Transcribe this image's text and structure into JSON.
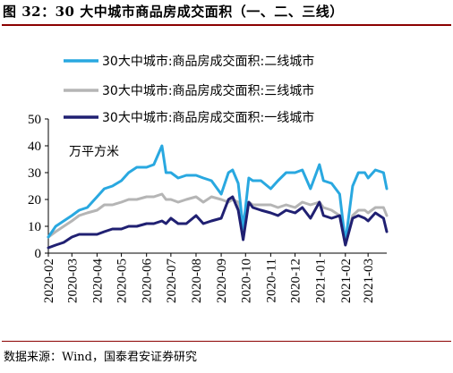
{
  "title": "图 32：30 大中城市商品房成交面积（一、二、三线）",
  "source": "数据来源：Wind，国泰君安证券研究",
  "chart_data": {
    "type": "line",
    "unit_label": "万平方米",
    "ylim": [
      0,
      50
    ],
    "yticks": [
      "0",
      "10",
      "20",
      "30",
      "40",
      "50"
    ],
    "xticks": [
      "2020-02",
      "2020-03",
      "2020-04",
      "2020-05",
      "2020-06",
      "2020-07",
      "2020-08",
      "2020-09",
      "2020-10",
      "2020-11",
      "2020-12",
      "2021-01",
      "2021-02",
      "2021-03"
    ],
    "x_range": [
      "2020-02-01",
      "2021-03-24"
    ],
    "x": [
      "2020-02-01",
      "2020-02-10",
      "2020-02-20",
      "2020-03-01",
      "2020-03-10",
      "2020-03-20",
      "2020-04-01",
      "2020-04-10",
      "2020-04-20",
      "2020-05-01",
      "2020-05-10",
      "2020-05-20",
      "2020-06-01",
      "2020-06-10",
      "2020-06-20",
      "2020-06-25",
      "2020-07-01",
      "2020-07-10",
      "2020-07-20",
      "2020-08-01",
      "2020-08-10",
      "2020-08-20",
      "2020-09-01",
      "2020-09-10",
      "2020-09-15",
      "2020-09-22",
      "2020-09-28",
      "2020-10-05",
      "2020-10-10",
      "2020-10-20",
      "2020-11-01",
      "2020-11-10",
      "2020-11-20",
      "2020-12-01",
      "2020-12-10",
      "2020-12-20",
      "2020-12-31",
      "2021-01-05",
      "2021-01-15",
      "2021-01-25",
      "2021-02-01",
      "2021-02-10",
      "2021-02-17",
      "2021-02-25",
      "2021-03-01",
      "2021-03-10",
      "2021-03-20",
      "2021-03-24"
    ],
    "series": [
      {
        "name": "30大中城市:商品房成交面积:二线城市",
        "color": "#29a8e0",
        "values": [
          6,
          10,
          12,
          14,
          16,
          17,
          21,
          24,
          25,
          27,
          30,
          32,
          32,
          33,
          40,
          30,
          30,
          28,
          29,
          29,
          28,
          27,
          22,
          30,
          31,
          26,
          9,
          28,
          27,
          27,
          24,
          27,
          30,
          30,
          31,
          24,
          33,
          27,
          26,
          22,
          4,
          25,
          30,
          30,
          28,
          31,
          30,
          24
        ]
      },
      {
        "name": "30大中城市:商品房成交面积:三线城市",
        "color": "#b5b5b5",
        "values": [
          6,
          8,
          10,
          12,
          14,
          15,
          16,
          18,
          18,
          19,
          20,
          20,
          21,
          21,
          22,
          20,
          20,
          19,
          20,
          21,
          19,
          21,
          20,
          19,
          20,
          19,
          12,
          19,
          18,
          18,
          18,
          17,
          18,
          17,
          19,
          18,
          19,
          17,
          16,
          14,
          3,
          14,
          16,
          16,
          15,
          17,
          17,
          14
        ]
      },
      {
        "name": "30大中城市:商品房成交面积:一线城市",
        "color": "#202072",
        "values": [
          2,
          3,
          4,
          6,
          7,
          7,
          7,
          8,
          9,
          9,
          10,
          10,
          11,
          11,
          12,
          11,
          13,
          11,
          11,
          14,
          11,
          12,
          13,
          20,
          21,
          16,
          5,
          19,
          17,
          16,
          15,
          14,
          16,
          15,
          17,
          13,
          19,
          14,
          13,
          14,
          3,
          13,
          14,
          13,
          12,
          15,
          13,
          8
        ]
      }
    ]
  }
}
